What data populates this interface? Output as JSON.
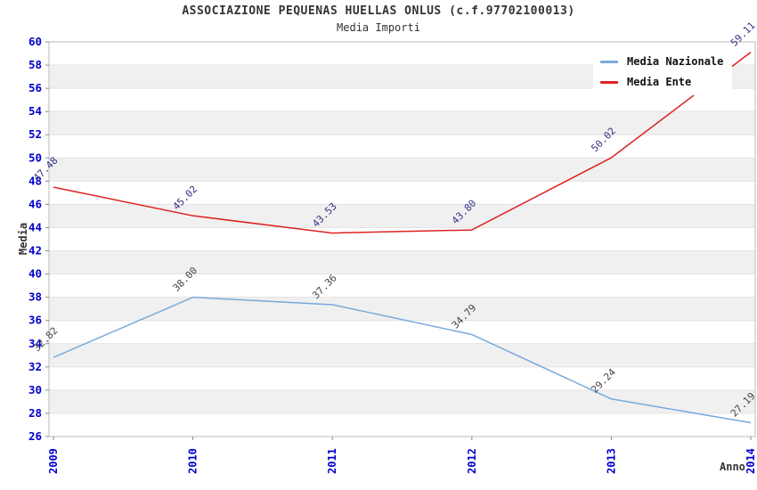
{
  "header": {
    "title": "ASSOCIAZIONE PEQUENAS HUELLAS ONLUS (c.f.97702100013)",
    "subtitle": "Media Importi"
  },
  "colors": {
    "tick_label_blue": "#0000cc",
    "grid_band_gray": "#f0f0f0",
    "gridline": "#e3e3e3",
    "plot_border": "#bbbbbb",
    "tick_mark": "#888888",
    "title_text": "#333333"
  },
  "chart_data": {
    "type": "line",
    "title": "ASSOCIAZIONE PEQUENAS HUELLAS ONLUS (c.f.97702100013)",
    "subtitle": "Media Importi",
    "xlabel": "Anno",
    "ylabel": "Media",
    "categories": [
      "2009",
      "2010",
      "2011",
      "2012",
      "2013",
      "2014"
    ],
    "ylim": [
      26,
      60
    ],
    "ytick_step": 2,
    "grid": "horizontal-bands",
    "legend_position": "top-right",
    "series": [
      {
        "name": "Media Nazionale",
        "color": "#7aaadc",
        "label_color": "#444444",
        "values": [
          32.82,
          38.0,
          37.36,
          34.79,
          29.24,
          27.19
        ],
        "point_labels": [
          "32.82",
          "38.00",
          "37.36",
          "34.79",
          "29.24",
          "27.19"
        ]
      },
      {
        "name": "Media Ente",
        "color": "#dd2222",
        "label_color": "#333388",
        "values": [
          47.48,
          45.02,
          43.53,
          43.8,
          50.02,
          59.11
        ],
        "point_labels": [
          "47.48",
          "45.02",
          "43.53",
          "43.80",
          "50.02",
          "59.11"
        ]
      }
    ]
  }
}
